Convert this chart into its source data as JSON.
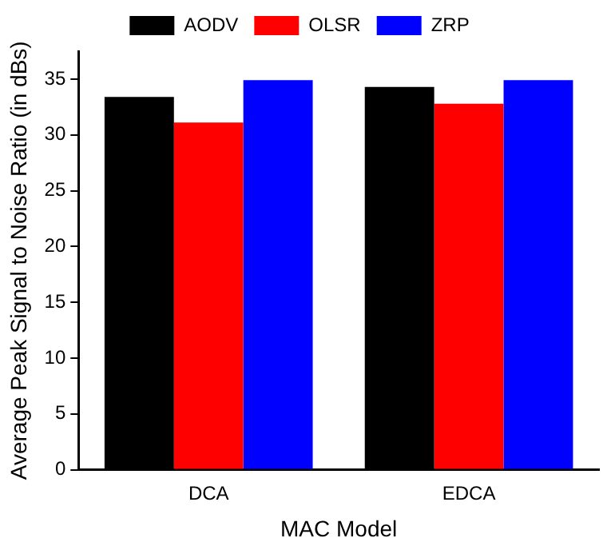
{
  "chart_data": {
    "type": "bar",
    "xlabel": "MAC Model",
    "ylabel": "Average Peak Signal to Noise Ratio (in dBs)",
    "categories": [
      "DCA",
      "EDCA"
    ],
    "series": [
      {
        "name": "AODV",
        "color": "#000000",
        "values": [
          33.4,
          34.3
        ]
      },
      {
        "name": "OLSR",
        "color": "#ff0000",
        "values": [
          31.1,
          32.8
        ]
      },
      {
        "name": "ZRP",
        "color": "#0000ff",
        "values": [
          34.9,
          34.9
        ]
      }
    ],
    "ylim": [
      0,
      37.5
    ],
    "yticks": [
      0,
      5,
      10,
      15,
      20,
      25,
      30,
      35
    ],
    "grid": false,
    "legend": "top"
  }
}
